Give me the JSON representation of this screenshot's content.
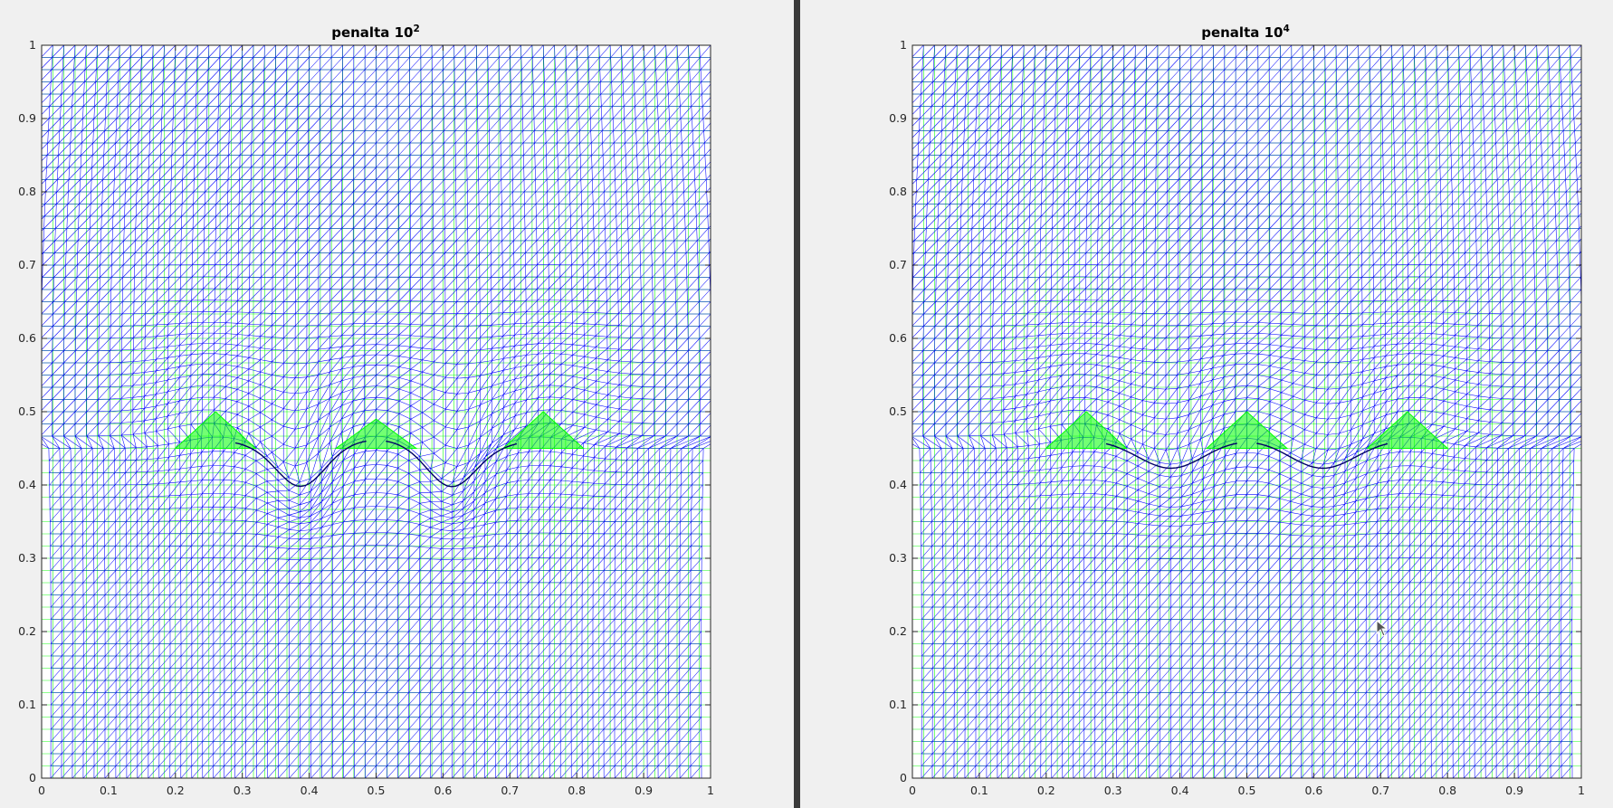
{
  "figures": [
    {
      "title_base": "penalta 10",
      "title_exponent": "2",
      "deformation": "dips"
    },
    {
      "title_base": "penalta 10",
      "title_exponent": "4",
      "deformation": "smooth"
    }
  ],
  "colors": {
    "mesh_blue": "#0000ff",
    "mesh_green": "#00ff00",
    "mesh_dark": "#000066",
    "window_bg": "#f0f0f0",
    "divider": "#3a3a3a"
  },
  "chart_data": [
    {
      "type": "mesh",
      "title": "penalta 10^2",
      "xlim": [
        0,
        1
      ],
      "ylim": [
        0,
        1
      ],
      "xticks": [
        "0",
        "0.1",
        "0.2",
        "0.3",
        "0.4",
        "0.5",
        "0.6",
        "0.7",
        "0.8",
        "0.9",
        "1"
      ],
      "yticks": [
        "0",
        "0.1",
        "0.2",
        "0.3",
        "0.4",
        "0.5",
        "0.6",
        "0.7",
        "0.8",
        "0.9",
        "1"
      ],
      "grid": false,
      "obstacles": [
        {
          "apex_x": 0.26,
          "apex_y": 0.5,
          "base_y": 0.45
        },
        {
          "apex_x": 0.5,
          "apex_y": 0.49,
          "base_y": 0.45
        },
        {
          "apex_x": 0.75,
          "apex_y": 0.5,
          "base_y": 0.45
        }
      ]
    },
    {
      "type": "mesh",
      "title": "penalta 10^4",
      "xlim": [
        0,
        1
      ],
      "ylim": [
        0,
        1
      ],
      "xticks": [
        "0",
        "0.1",
        "0.2",
        "0.3",
        "0.4",
        "0.5",
        "0.6",
        "0.7",
        "0.8",
        "0.9",
        "1"
      ],
      "yticks": [
        "0",
        "0.1",
        "0.2",
        "0.3",
        "0.4",
        "0.5",
        "0.6",
        "0.7",
        "0.8",
        "0.9",
        "1"
      ],
      "grid": false,
      "obstacles": [
        {
          "apex_x": 0.26,
          "apex_y": 0.5,
          "base_y": 0.45
        },
        {
          "apex_x": 0.5,
          "apex_y": 0.5,
          "base_y": 0.45
        },
        {
          "apex_x": 0.74,
          "apex_y": 0.5,
          "base_y": 0.45
        }
      ]
    }
  ]
}
